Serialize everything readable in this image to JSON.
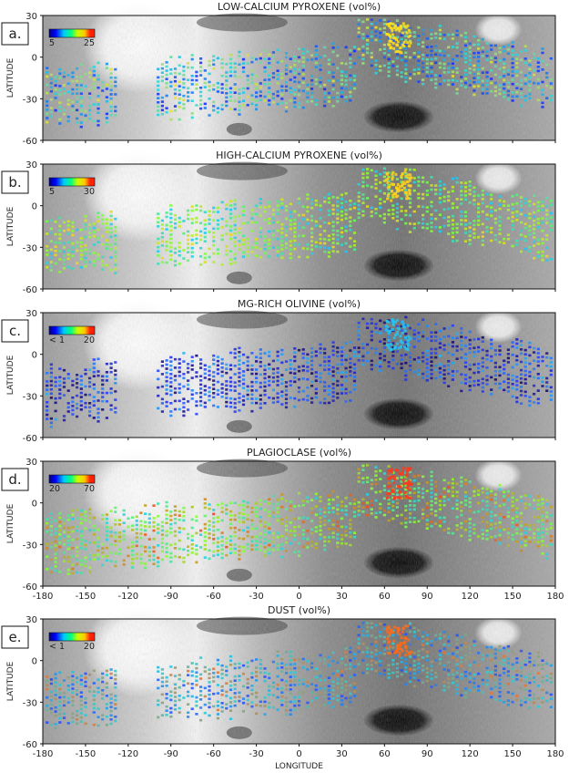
{
  "figure": {
    "xlabel": "LONGITUDE",
    "ylabel": "LATITUDE",
    "longitude_ticks": [
      "-180",
      "-150",
      "-120",
      "-90",
      "-60",
      "-30",
      "0",
      "30",
      "60",
      "90",
      "120",
      "150",
      "180"
    ],
    "latitude_ticks": [
      "30",
      "0",
      "-30",
      "-60"
    ]
  },
  "chart_data": [
    {
      "type": "heatmap",
      "panel_label": "a.",
      "title": "LOW-CALCIUM PYROXENE (vol%)",
      "xlim": [
        -180,
        180
      ],
      "ylim": [
        -60,
        30
      ],
      "colorbar": {
        "min_label": "5",
        "max_label": "25",
        "range": [
          5,
          25
        ]
      },
      "ylabel": "LATITUDE",
      "xlabel": "",
      "show_x_tick_labels": false,
      "palette": {
        "low": "#1a2bff",
        "mid": "#22d8e0",
        "high": "#ffe21a"
      }
    },
    {
      "type": "heatmap",
      "panel_label": "b.",
      "title": "HIGH-CALCIUM PYROXENE (vol%)",
      "xlim": [
        -180,
        180
      ],
      "ylim": [
        -60,
        30
      ],
      "colorbar": {
        "min_label": "5",
        "max_label": "30",
        "range": [
          5,
          30
        ]
      },
      "ylabel": "LATITUDE",
      "xlabel": "",
      "show_x_tick_labels": false,
      "palette": {
        "low": "#19c8ff",
        "mid": "#7cff3a",
        "high": "#ffd21a"
      }
    },
    {
      "type": "heatmap",
      "panel_label": "c.",
      "title": "MG-RICH OLIVINE (vol%)",
      "xlim": [
        -180,
        180
      ],
      "ylim": [
        -60,
        30
      ],
      "colorbar": {
        "min_label": "< 1",
        "max_label": "20",
        "range": [
          1,
          20
        ]
      },
      "ylabel": "LATITUDE",
      "xlabel": "",
      "show_x_tick_labels": false,
      "palette": {
        "low": "#1a0a6e",
        "mid": "#2a3dff",
        "high": "#22c6f0"
      }
    },
    {
      "type": "heatmap",
      "panel_label": "d.",
      "title": "PLAGIOCLASE (vol%)",
      "xlim": [
        -180,
        180
      ],
      "ylim": [
        -60,
        30
      ],
      "colorbar": {
        "min_label": "20",
        "max_label": "70",
        "range": [
          20,
          70
        ]
      },
      "ylabel": "LATITUDE",
      "xlabel": "",
      "show_x_tick_labels": true,
      "palette": {
        "low": "#22d0e8",
        "mid": "#8cff30",
        "high": "#ff3a1a"
      }
    },
    {
      "type": "heatmap",
      "panel_label": "e.",
      "title": "DUST (vol%)",
      "xlim": [
        -180,
        180
      ],
      "ylim": [
        -60,
        30
      ],
      "colorbar": {
        "min_label": "< 1",
        "max_label": "20",
        "range": [
          1,
          20
        ]
      },
      "ylabel": "LATITUDE",
      "xlabel": "LONGITUDE",
      "show_x_tick_labels": true,
      "palette": {
        "low": "#2a4bff",
        "mid": "#27d0d8",
        "high": "#ff6a1a"
      }
    }
  ],
  "colors": {
    "rainbow": [
      "#000080",
      "#0000ff",
      "#00c8ff",
      "#00ff80",
      "#c8ff00",
      "#ffc800",
      "#ff2000",
      "#ffffff"
    ]
  }
}
